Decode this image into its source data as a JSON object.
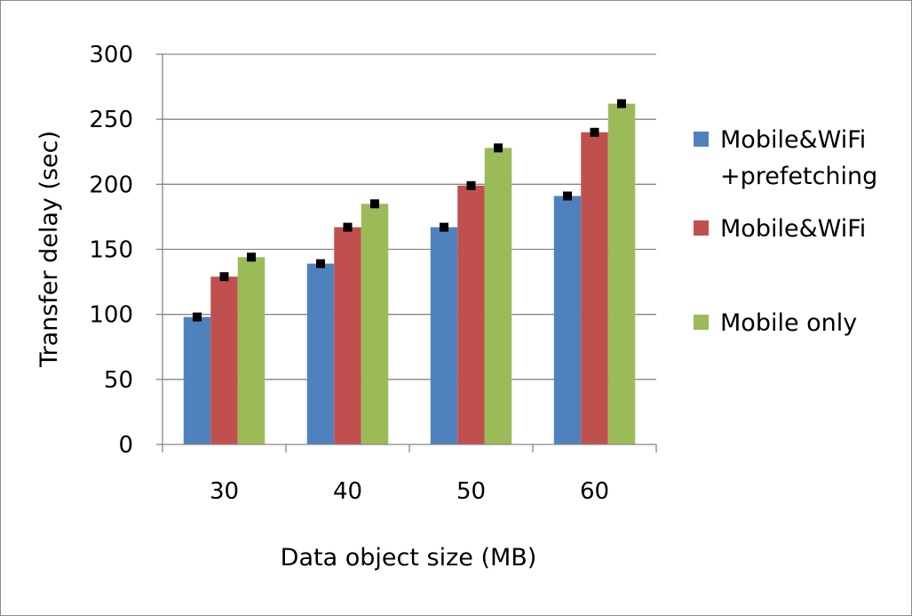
{
  "chart_data": {
    "type": "bar",
    "title": "",
    "xlabel": "Data object size (MB)",
    "ylabel": "Transfer delay (sec)",
    "ylim": [
      0,
      300
    ],
    "yticks": [
      0,
      50,
      100,
      150,
      200,
      250,
      300
    ],
    "grid": true,
    "legend_position": "right",
    "categories": [
      "30",
      "40",
      "50",
      "60"
    ],
    "series": [
      {
        "name": "Mobile&WiFi +prefetching",
        "legend_lines": [
          "Mobile&WiFi",
          "+prefetching"
        ],
        "color": "#4f81bd",
        "values": [
          98,
          139,
          167,
          191
        ],
        "markers": [
          98,
          139,
          167,
          191
        ]
      },
      {
        "name": "Mobile&WiFi",
        "legend_lines": [
          "Mobile&WiFi"
        ],
        "color": "#c0504d",
        "values": [
          129,
          167,
          199,
          240
        ],
        "markers": [
          129,
          167,
          199,
          240
        ]
      },
      {
        "name": "Mobile only",
        "legend_lines": [
          "Mobile only"
        ],
        "color": "#9bbb59",
        "values": [
          144,
          185,
          228,
          262
        ],
        "markers": [
          144,
          185,
          228,
          262
        ]
      }
    ]
  }
}
